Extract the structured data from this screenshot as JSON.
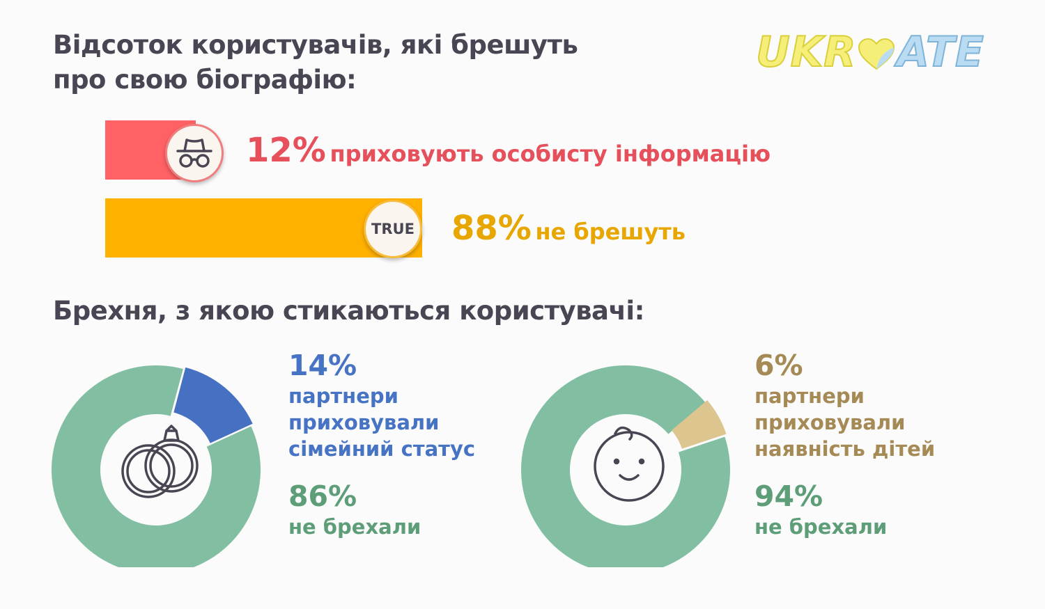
{
  "titles": {
    "main": "Відсоток користувачів, які брешуть про свою біографію:",
    "second": "Брехня, з якою стикаються користувачі:"
  },
  "logo": {
    "text_left": "UKR",
    "text_right": "ATE"
  },
  "chart_data": [
    {
      "type": "bar",
      "orientation": "horizontal",
      "title": "Відсоток користувачів, які брешуть про свою біографію:",
      "categories": [
        "приховують особисту інформацію",
        "не брешуть"
      ],
      "values": [
        12,
        88
      ],
      "value_labels": [
        "12%",
        "88%"
      ],
      "colors": [
        "#ff6164",
        "#ffb100"
      ],
      "badges": [
        "spy-icon",
        "TRUE"
      ]
    },
    {
      "type": "pie",
      "variant": "donut",
      "title": "Брехня, з якою стикаються користувачі:",
      "slices": [
        {
          "label": "партнери приховували сімейний статус",
          "value": 14,
          "value_label": "14%",
          "color": "#4670c2"
        },
        {
          "label": "не брехали",
          "value": 86,
          "value_label": "86%",
          "color": "#82bfa2"
        }
      ],
      "center_icon": "wedding-rings-icon"
    },
    {
      "type": "pie",
      "variant": "donut",
      "slices": [
        {
          "label": "партнери приховували наявність дітей",
          "value": 6,
          "value_label": "6%",
          "color": "#dcc58f"
        },
        {
          "label": "не брехали",
          "value": 94,
          "value_label": "94%",
          "color": "#82bfa2"
        }
      ],
      "center_icon": "baby-face-icon"
    }
  ],
  "texts": {
    "bar1_pct": "12%",
    "bar1_label": "приховують особисту інформацію",
    "bar2_pct": "88%",
    "bar2_label": "не брешуть",
    "bar2_badge": "TRUE",
    "d1_pct": "14%",
    "d1_line1": "партнери",
    "d1_line2": "приховували",
    "d1_line3": "сімейний статус",
    "d1_rest_pct": "86%",
    "d1_rest_label": "не брехали",
    "d2_pct": "6%",
    "d2_line1": "партнери",
    "d2_line2": "приховували",
    "d2_line3": "наявність дітей",
    "d2_rest_pct": "94%",
    "d2_rest_label": "не брехали"
  }
}
